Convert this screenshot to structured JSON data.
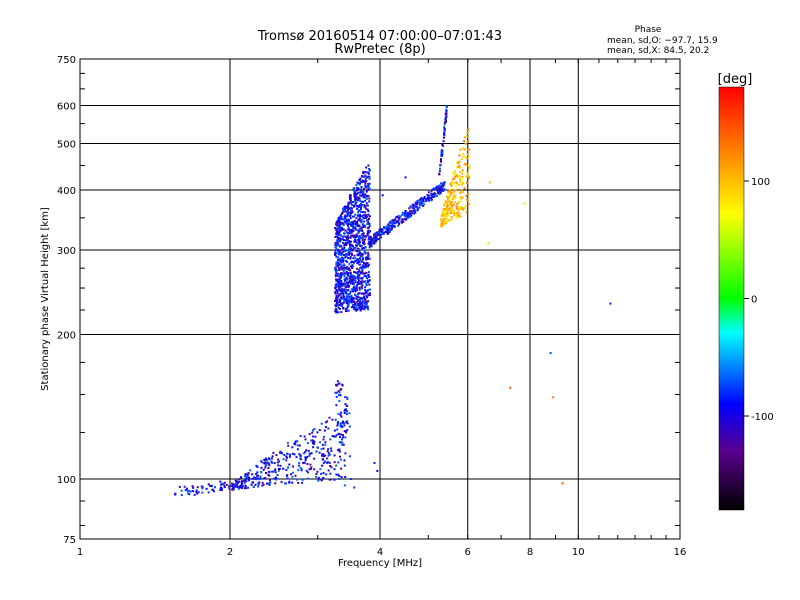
{
  "chart_data": {
    "type": "scatter",
    "title": "Tromsø 20160514 07:00:00–07:01:43",
    "subtitle": "RwPretec (8p)",
    "xlabel": "Frequency [MHz]",
    "ylabel": "Stationary phase Virtual Height [km]",
    "x_scale": "log",
    "y_scale": "log",
    "xlim": [
      1,
      16
    ],
    "ylim": [
      75,
      750
    ],
    "x_ticks": [
      1,
      2,
      4,
      6,
      8,
      10,
      16
    ],
    "y_ticks": [
      75,
      100,
      200,
      300,
      400,
      500,
      600,
      750
    ],
    "grid": true,
    "phase_box": {
      "title": "Phase",
      "line_o": "mean, sd,O: −97.7, 15.9",
      "line_x": "mean, sd,X:  84.5, 20.2"
    },
    "colorbar": {
      "label": "[deg]",
      "range": [
        -180,
        180
      ],
      "ticks": [
        100,
        0,
        -100
      ]
    },
    "clusters": [
      {
        "type": "trace",
        "f_range": [
          1.55,
          2.02
        ],
        "h_range": [
          94,
          97
        ],
        "phase": -100,
        "n": 55
      },
      {
        "type": "band",
        "f_range": [
          2.02,
          3.45
        ],
        "h_low": [
          95,
          100
        ],
        "h_high": [
          98,
          142
        ],
        "phase": -100,
        "n": 380
      },
      {
        "type": "band",
        "f_range": [
          3.25,
          3.48
        ],
        "h_low": [
          130,
          105
        ],
        "h_high": [
          165,
          150
        ],
        "phase": -100,
        "n": 50
      },
      {
        "type": "band",
        "f_range": [
          3.25,
          3.82
        ],
        "h_low": [
          222,
          225
        ],
        "h_high": [
          340,
          460
        ],
        "phase": -100,
        "n": 1200
      },
      {
        "type": "trace",
        "f_range": [
          3.8,
          5.4
        ],
        "h_range": [
          310,
          410
        ],
        "phase": -100,
        "n": 330
      },
      {
        "type": "trace",
        "f_range": [
          5.25,
          5.45
        ],
        "h_range": [
          420,
          595
        ],
        "phase": -100,
        "n": 60
      },
      {
        "type": "band",
        "f_range": [
          5.3,
          6.05
        ],
        "h_low": [
          335,
          360
        ],
        "h_high": [
          350,
          550
        ],
        "phase": 100,
        "n": 250
      }
    ],
    "isolated_points": [
      {
        "f": 3.4,
        "h": 97,
        "phase": -100
      },
      {
        "f": 3.5,
        "h": 100,
        "phase": -100
      },
      {
        "f": 3.55,
        "h": 96,
        "phase": -100
      },
      {
        "f": 3.9,
        "h": 108,
        "phase": -100
      },
      {
        "f": 3.95,
        "h": 104,
        "phase": -100
      },
      {
        "f": 4.5,
        "h": 425,
        "phase": -100
      },
      {
        "f": 4.05,
        "h": 390,
        "phase": -100
      },
      {
        "f": 6.6,
        "h": 310,
        "phase": 100
      },
      {
        "f": 6.65,
        "h": 415,
        "phase": 100
      },
      {
        "f": 7.3,
        "h": 155,
        "phase": 150
      },
      {
        "f": 7.8,
        "h": 375,
        "phase": 100
      },
      {
        "f": 8.8,
        "h": 183,
        "phase": -80
      },
      {
        "f": 8.9,
        "h": 148,
        "phase": 140
      },
      {
        "f": 9.3,
        "h": 98,
        "phase": 150
      },
      {
        "f": 11.6,
        "h": 232,
        "phase": -100
      }
    ]
  }
}
